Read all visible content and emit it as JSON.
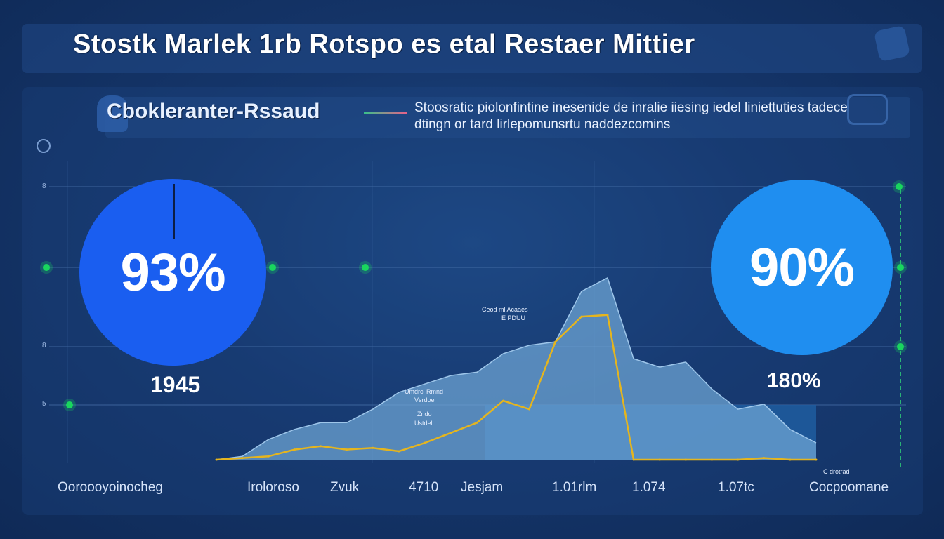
{
  "header": {
    "title": "Stostk Marlek 1rb Rotspo  es etal Restaer Mittier"
  },
  "subheader": {
    "heading": "Cbokleranter-Rssaud",
    "description": "Stoosratic piolonfintine inesenide de inralie iiesing iedel liniettuties tadece dtingn or tard lirlepomunsrtu naddezcomins"
  },
  "kpis": {
    "left": {
      "percent": "93%",
      "value": "1945"
    },
    "right": {
      "percent": "90%",
      "value": "180%"
    }
  },
  "icons": {
    "title": "robot-hand-icon",
    "subheader_left": "helmet-icon",
    "subheader_right": "gear-tool-icon",
    "ring": "ring-icon"
  },
  "colors": {
    "background": "#15366b",
    "circle_left": "#1a5ef0",
    "circle_right": "#1f8ef0",
    "area_fill": "#6fa6d6",
    "line": "#e5b51e",
    "marker": "#19d65e"
  },
  "chart_data": {
    "type": "area",
    "title": "",
    "xlabel": "",
    "ylabel": "",
    "grid": true,
    "y_ticks": [
      "8",
      "8",
      "5"
    ],
    "x_tick_labels": [
      "Ooroooyoinocheg",
      "Iroloroso",
      "Zvuk",
      "4710",
      "Jesjam",
      "1.01rlm",
      "1.074",
      "1.07tc",
      "Cocpoomane"
    ],
    "annotations": [
      "Ceod ml Acaaes",
      "E PDUU",
      "Umdrcl Rmnd",
      "Zndo",
      "Ustdel",
      "Vsrdoe",
      "C drotrad"
    ],
    "series": [
      {
        "x": [
          0,
          1,
          2,
          3,
          4,
          5,
          6,
          7,
          8,
          9,
          10,
          11,
          12,
          13,
          14,
          15,
          16,
          17,
          18,
          19,
          20,
          21,
          22,
          23
        ],
        "values": [
          0,
          2,
          12,
          18,
          22,
          22,
          30,
          40,
          45,
          50,
          52,
          63,
          68,
          70,
          100,
          108,
          60,
          55,
          58,
          42,
          30,
          33,
          18,
          10
        ]
      },
      {
        "x": [
          0,
          1,
          2,
          3,
          4,
          5,
          6,
          7,
          8,
          9,
          10,
          11,
          12,
          13,
          14,
          15,
          16,
          17,
          18,
          19,
          20,
          21,
          22,
          23
        ],
        "values": [
          0,
          1,
          2,
          6,
          8,
          6,
          7,
          5,
          10,
          16,
          22,
          35,
          30,
          70,
          85,
          86,
          0,
          0,
          0,
          0,
          0,
          1,
          0,
          -3
        ]
      }
    ]
  }
}
